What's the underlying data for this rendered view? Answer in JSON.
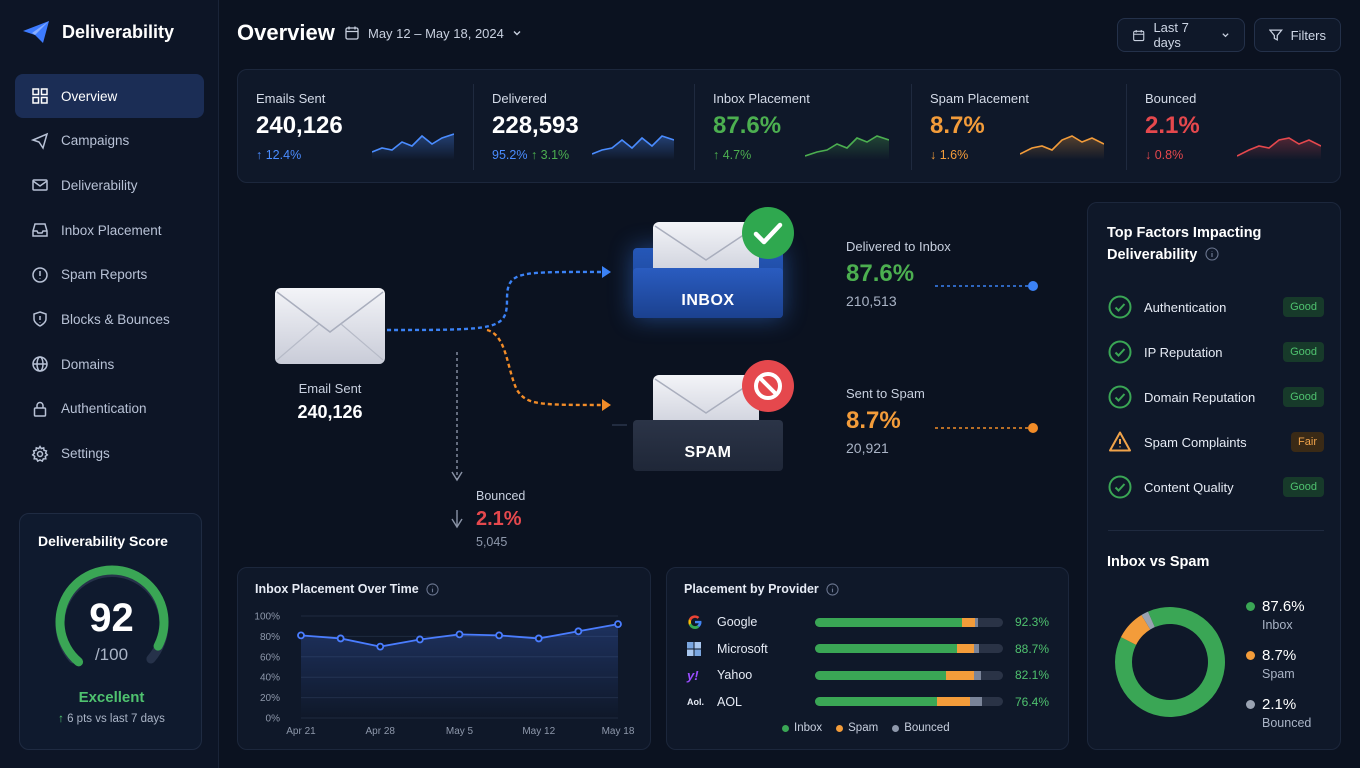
{
  "app": {
    "name": "Deliverability"
  },
  "nav": [
    {
      "label": "Overview",
      "active": true
    },
    {
      "label": "Campaigns"
    },
    {
      "label": "Deliverability"
    },
    {
      "label": "Inbox Placement"
    },
    {
      "label": "Spam Reports"
    },
    {
      "label": "Blocks & Bounces"
    },
    {
      "label": "Domains"
    },
    {
      "label": "Authentication"
    },
    {
      "label": "Settings"
    }
  ],
  "score": {
    "title": "Deliverability Score",
    "value": "92",
    "max": "/100",
    "fraction": 0.92,
    "rating": "Excellent",
    "change": "6 pts vs last 7 days"
  },
  "header": {
    "title": "Overview",
    "date_range": "May 12 – May 18, 2024",
    "period": "Last 7 days",
    "filters": "Filters"
  },
  "kpis": [
    {
      "label": "Emails Sent",
      "value": "240,126",
      "change": "12.4%",
      "color": "#4a8cff"
    },
    {
      "label": "Delivered",
      "value": "228,593",
      "sub": "95.2%",
      "change": "3.1%",
      "color": "#4a8cff"
    },
    {
      "label": "Inbox Placement",
      "value": "87.6%",
      "change": "4.7%",
      "color": "#4caf50"
    },
    {
      "label": "Spam Placement",
      "value": "8.7%",
      "change": "1.6%",
      "color": "#f39c3a"
    },
    {
      "label": "Bounced",
      "value": "2.1%",
      "change": "0.8%",
      "color": "#e5484d"
    }
  ],
  "flow": {
    "sent_label": "Email Sent",
    "sent_value": "240,126",
    "inbox_box": "INBOX",
    "spam_box": "SPAM",
    "inbox_label": "Delivered to Inbox",
    "inbox_pct": "87.6%",
    "inbox_count": "210,513",
    "spam_label": "Sent to Spam",
    "spam_pct": "8.7%",
    "spam_count": "20,921",
    "bounce_label": "Bounced",
    "bounce_pct": "2.1%",
    "bounce_count": "5,045"
  },
  "factors": {
    "title": "Top Factors Impacting Deliverability",
    "items": [
      {
        "label": "Authentication",
        "status": "Good"
      },
      {
        "label": "IP Reputation",
        "status": "Good"
      },
      {
        "label": "Domain Reputation",
        "status": "Good"
      },
      {
        "label": "Spam Complaints",
        "status": "Fair"
      },
      {
        "label": "Content Quality",
        "status": "Good"
      }
    ]
  },
  "inbox_vs_spam": {
    "title": "Inbox vs Spam",
    "items": [
      {
        "pct": "87.6%",
        "label": "Inbox",
        "color": "#3aa655"
      },
      {
        "pct": "8.7%",
        "label": "Spam",
        "color": "#f39c3a"
      },
      {
        "pct": "2.1%",
        "label": "Bounced",
        "color": "#9aa3b2"
      }
    ]
  },
  "provider": {
    "title": "Placement by Provider",
    "rows": [
      {
        "name": "Google",
        "inbox": 92.3,
        "spam": 5.5,
        "bounced": 2.2,
        "pct": "92.3%"
      },
      {
        "name": "Microsoft",
        "inbox": 88.7,
        "spam": 7.8,
        "bounced": 3.5,
        "pct": "88.7%"
      },
      {
        "name": "Yahoo",
        "inbox": 82.1,
        "spam": 12.4,
        "bounced": 5.5,
        "pct": "82.1%"
      },
      {
        "name": "AOL",
        "inbox": 76.4,
        "spam": 14.6,
        "bounced": 9.0,
        "pct": "76.4%"
      }
    ],
    "legend": [
      "Inbox",
      "Spam",
      "Bounced"
    ]
  },
  "chart_data": {
    "type": "line",
    "title": "Inbox Placement Over Time",
    "x": [
      "Apr 21",
      "Apr 24",
      "Apr 28",
      "May 1",
      "May 5",
      "May 9",
      "May 12",
      "May 15",
      "May 18"
    ],
    "xticks": [
      "Apr 21",
      "Apr 28",
      "May 5",
      "May 12",
      "May 18"
    ],
    "values": [
      81,
      78,
      70,
      77,
      82,
      81,
      78,
      85,
      92
    ],
    "yticks": [
      "100%",
      "80%",
      "60%",
      "40%",
      "20%",
      "0%"
    ],
    "ylim": [
      0,
      100
    ],
    "color": "#4a7dff"
  }
}
